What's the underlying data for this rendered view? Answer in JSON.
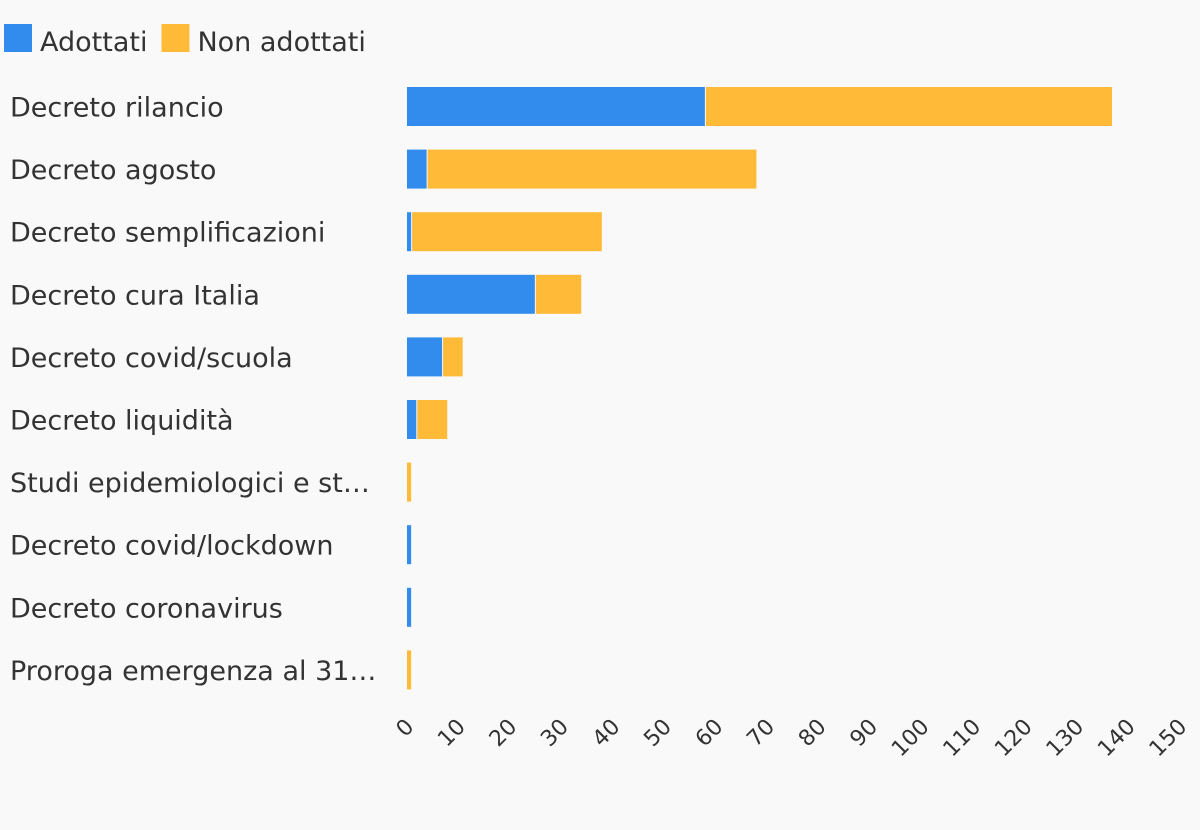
{
  "chart_data": {
    "type": "bar",
    "orientation": "horizontal",
    "stacked": true,
    "title": "",
    "xlabel": "",
    "ylabel": "",
    "xlim": [
      0,
      150
    ],
    "x_ticks": [
      "0",
      "10",
      "20",
      "30",
      "40",
      "50",
      "60",
      "70",
      "80",
      "90",
      "100",
      "110",
      "120",
      "130",
      "140",
      "150"
    ],
    "grid": false,
    "legend_position": "top-left",
    "categories": [
      "Decreto rilancio",
      "Decreto agosto",
      "Decreto semplificazioni",
      "Decreto cura Italia",
      "Decreto covid/scuola",
      "Decreto liquidità",
      "Studi epidemiologici e st…",
      "Decreto covid/lockdown",
      "Decreto coronavirus",
      "Proroga emergenza al 31…"
    ],
    "series": [
      {
        "name": "Adottati",
        "color": "#318cee",
        "values": [
          58,
          4,
          1,
          25,
          7,
          2,
          0,
          1,
          1,
          0
        ]
      },
      {
        "name": "Non adottati",
        "color": "#ffba38",
        "values": [
          79,
          64,
          37,
          9,
          4,
          6,
          1,
          0,
          0,
          1
        ]
      }
    ]
  }
}
